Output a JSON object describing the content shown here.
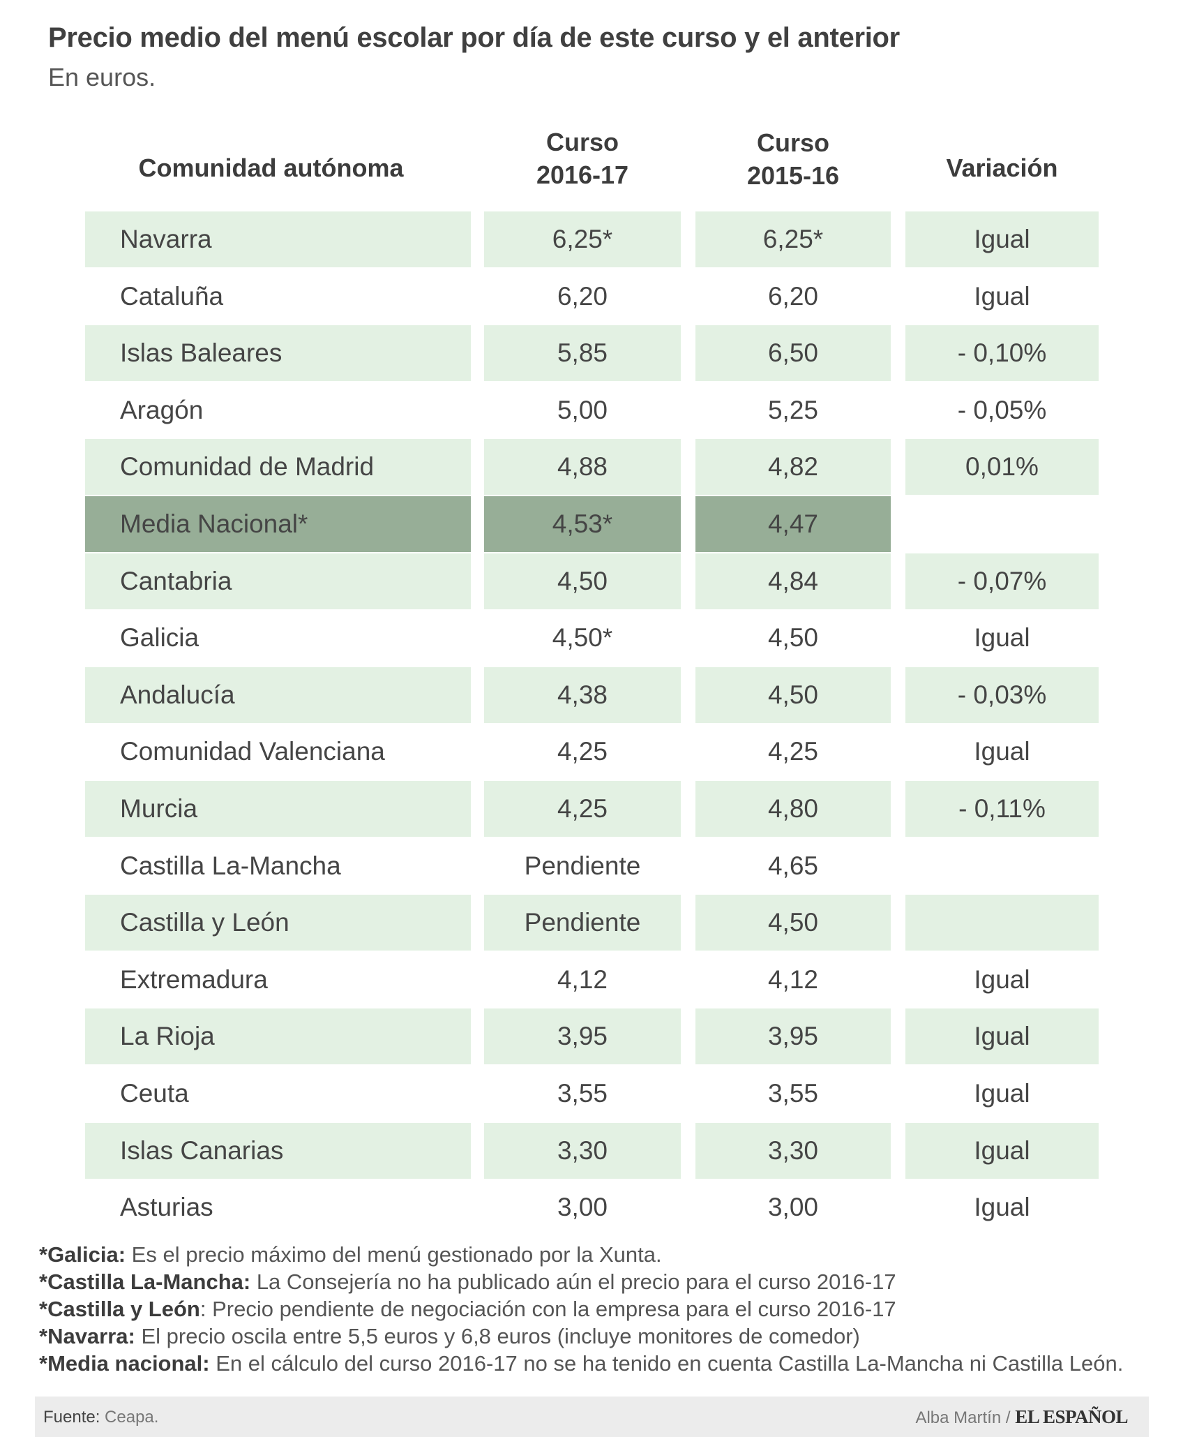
{
  "title": "Precio medio del menú escolar por día de este curso y el anterior",
  "subtitle": "En euros.",
  "headers": {
    "community": "Comunidad autónoma",
    "c1_line1": "Curso",
    "c1_line2": "2016-17",
    "c2_line1": "Curso",
    "c2_line2": "2015-16",
    "variation": "Variación"
  },
  "rows": [
    {
      "name": "Navarra",
      "c2016": "6,25*",
      "c2015": "6,25*",
      "var": "Igual"
    },
    {
      "name": "Cataluña",
      "c2016": "6,20",
      "c2015": "6,20",
      "var": "Igual"
    },
    {
      "name": "Islas Baleares",
      "c2016": "5,85",
      "c2015": "6,50",
      "var": "- 0,10%"
    },
    {
      "name": "Aragón",
      "c2016": "5,00",
      "c2015": "5,25",
      "var": "- 0,05%"
    },
    {
      "name": "Comunidad de Madrid",
      "c2016": "4,88",
      "c2015": "4,82",
      "var": "0,01%"
    },
    {
      "name": "Media Nacional*",
      "c2016": "4,53*",
      "c2015": "4,47",
      "var": ""
    },
    {
      "name": "Cantabria",
      "c2016": "4,50",
      "c2015": "4,84",
      "var": "- 0,07%"
    },
    {
      "name": "Galicia",
      "c2016": "4,50*",
      "c2015": "4,50",
      "var": "Igual"
    },
    {
      "name": "Andalucía",
      "c2016": "4,38",
      "c2015": "4,50",
      "var": "- 0,03%"
    },
    {
      "name": "Comunidad Valenciana",
      "c2016": "4,25",
      "c2015": "4,25",
      "var": "Igual"
    },
    {
      "name": "Murcia",
      "c2016": "4,25",
      "c2015": "4,80",
      "var": "- 0,11%"
    },
    {
      "name": "Castilla La-Mancha",
      "c2016": "Pendiente",
      "c2015": "4,65",
      "var": ""
    },
    {
      "name": "Castilla y León",
      "c2016": "Pendiente",
      "c2015": "4,50",
      "var": ""
    },
    {
      "name": "Extremadura",
      "c2016": "4,12",
      "c2015": "4,12",
      "var": "Igual"
    },
    {
      "name": "La Rioja",
      "c2016": "3,95",
      "c2015": "3,95",
      "var": "Igual"
    },
    {
      "name": "Ceuta",
      "c2016": "3,55",
      "c2015": "3,55",
      "var": "Igual"
    },
    {
      "name": "Islas Canarias",
      "c2016": "3,30",
      "c2015": "3,30",
      "var": "Igual"
    },
    {
      "name": "Asturias",
      "c2016": "3,00",
      "c2015": "3,00",
      "var": "Igual"
    }
  ],
  "notes": [
    {
      "label": "*Galicia:",
      "text": " Es el precio máximo del menú gestionado por la Xunta."
    },
    {
      "label": "*Castilla La-Mancha:",
      "text": " La Consejería no ha publicado aún el precio para el curso 2016-17"
    },
    {
      "label": "*Castilla y León",
      "text": ": Precio pendiente de negociación con la empresa para el curso 2016-17"
    },
    {
      "label": "*Navarra:",
      "text": " El precio oscila entre 5,5 euros y 6,8 euros (incluye monitores de comedor)"
    },
    {
      "label": "*Media nacional:",
      "text": " En el cálculo del curso 2016-17 no se ha tenido en cuenta Castilla La-Mancha ni Castilla León."
    }
  ],
  "footer": {
    "source_label": "Fuente:",
    "source": " Ceapa.",
    "author": "Alba Martín /",
    "logo": "EL ESPAÑOL"
  },
  "colors": {
    "light": "#e3f1e3",
    "dark": "#97ae97"
  }
}
